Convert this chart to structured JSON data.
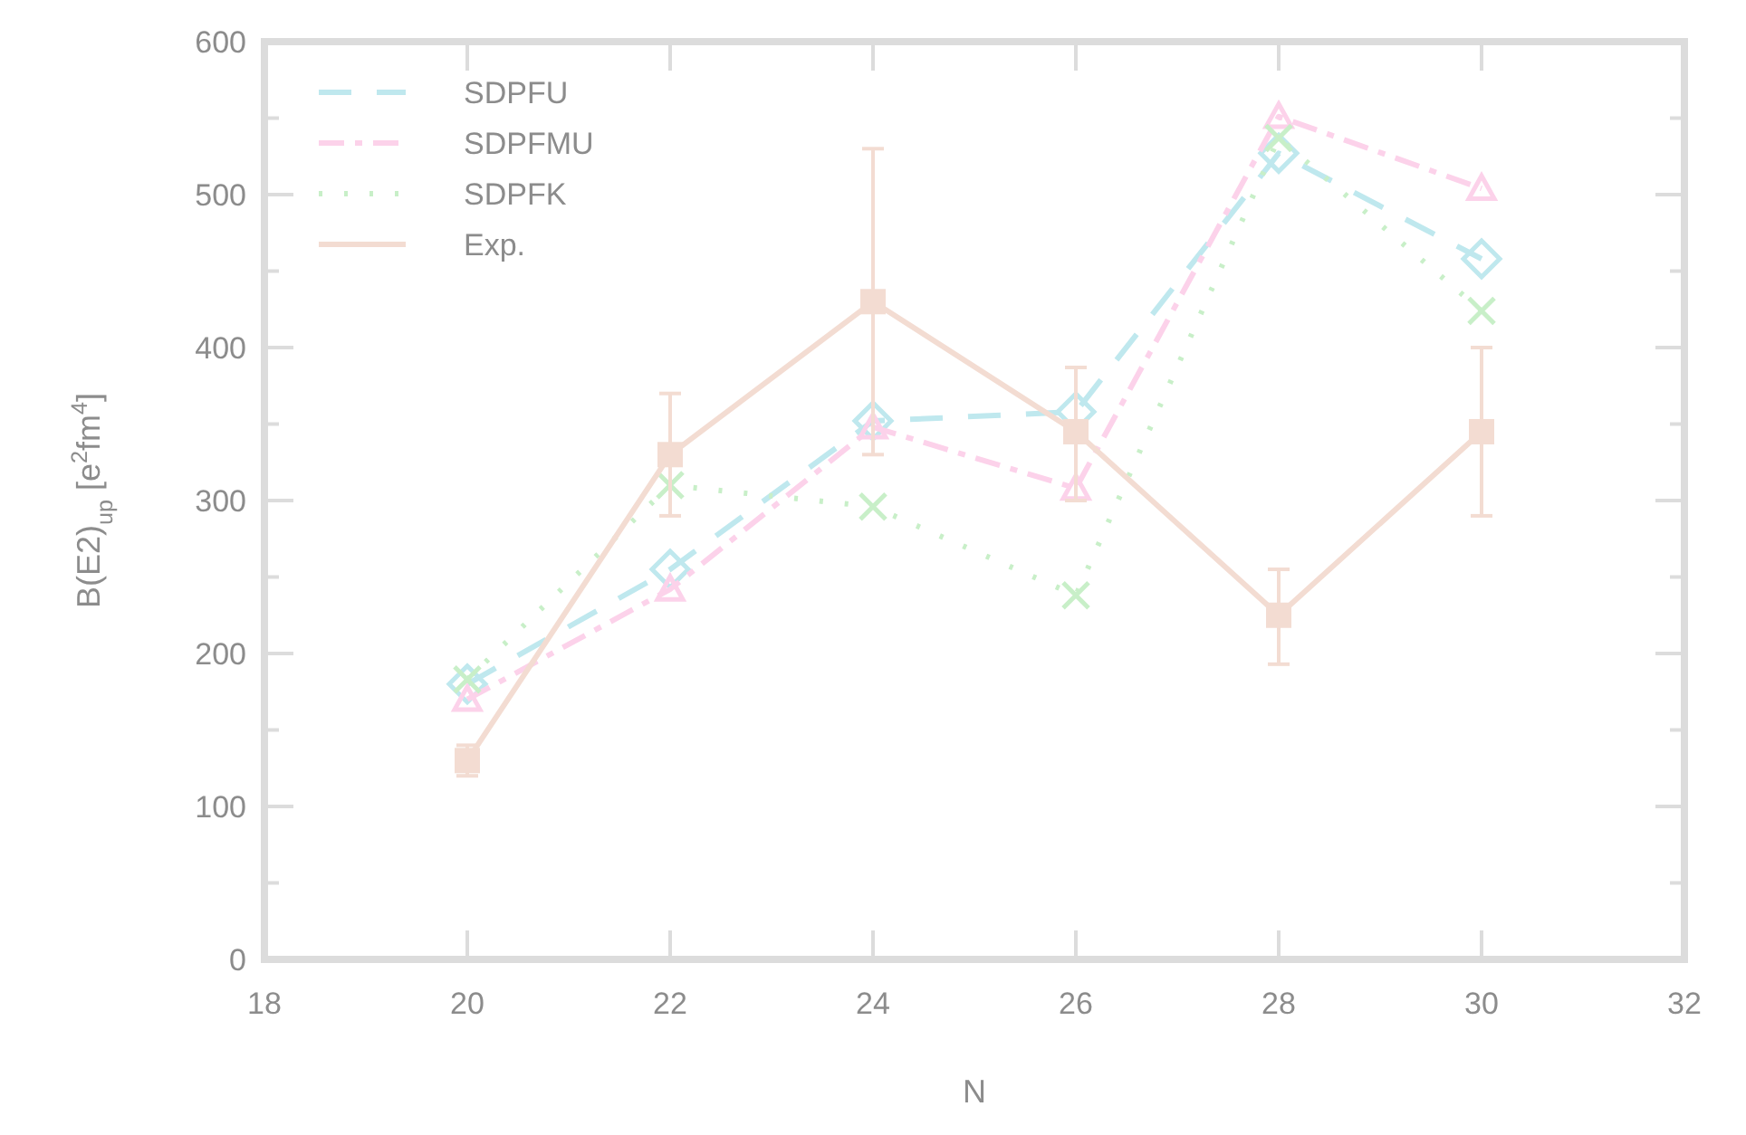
{
  "chart_data": {
    "type": "line",
    "xlabel": "N",
    "ylabel": "B(E2)$_{up}$ [e$^{2}$fm$^{4}$]",
    "x": [
      20,
      22,
      24,
      26,
      28,
      30
    ],
    "xlim": [
      18,
      32
    ],
    "xticks": [
      18,
      20,
      22,
      24,
      26,
      28,
      30,
      32
    ],
    "ylim": [
      0,
      600
    ],
    "yticks": [
      0,
      {
        "value": 50,
        "label": null
      },
      100,
      {
        "value": 150,
        "label": null
      },
      200,
      {
        "value": 250,
        "label": null
      },
      300,
      {
        "value": 350,
        "label": null
      },
      400,
      {
        "value": 450,
        "label": null
      },
      500,
      {
        "value": 550,
        "label": null
      },
      600
    ],
    "legend": "top left",
    "grid": false,
    "series": [
      {
        "name": "SDPFU",
        "color": "#bfe8ee",
        "marker": "diamond",
        "line_style": "dashed",
        "values": [
          180,
          255,
          352,
          358,
          527,
          458
        ]
      },
      {
        "name": "SDPFMU",
        "color": "#fcd2ea",
        "marker": "triangle",
        "line_style": "dashdot",
        "values": [
          170,
          242,
          348,
          308,
          551,
          504
        ]
      },
      {
        "name": "SDPFK",
        "color": "#c8efc8",
        "marker": "cross",
        "line_style": "dotted",
        "values": [
          183,
          310,
          296,
          238,
          537,
          424
        ]
      },
      {
        "name": "Exp.",
        "color": "#f3dcd2",
        "marker": "square",
        "line_style": "solid",
        "values": [
          130,
          330,
          430,
          345,
          225,
          345
        ],
        "errors": [
          [
            120,
            140
          ],
          [
            290,
            370
          ],
          [
            330,
            530
          ],
          [
            300,
            387
          ],
          [
            193,
            255
          ],
          [
            290,
            400
          ]
        ]
      }
    ]
  }
}
